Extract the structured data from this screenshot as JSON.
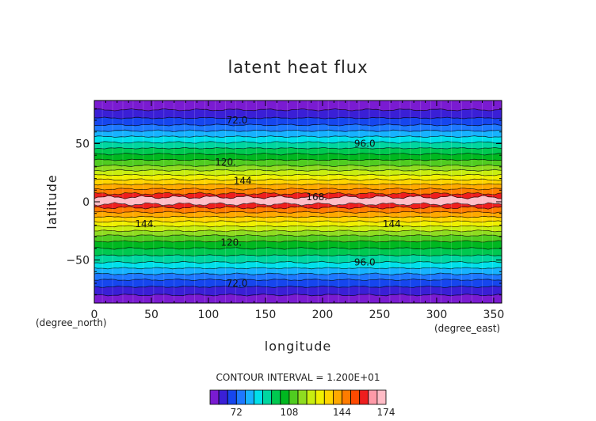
{
  "chart_data": {
    "type": "heatmap",
    "title": "latent heat flux",
    "xlabel": "longitude",
    "ylabel": "latitude",
    "x_unit": "(degree_east)",
    "y_unit": "(degree_north)",
    "xlim": [
      0,
      357
    ],
    "ylim": [
      -87,
      87
    ],
    "x_ticks": [
      "0",
      "50",
      "100",
      "150",
      "200",
      "250",
      "300",
      "350"
    ],
    "y_ticks": [
      "50",
      "0",
      "−50"
    ],
    "contour_interval_text": "CONTOUR INTERVAL = 1.200E+01",
    "contour_labels": [
      {
        "text": "72.0",
        "lon": 125,
        "lat": 70
      },
      {
        "text": "96.0",
        "lon": 237,
        "lat": 50
      },
      {
        "text": "120.",
        "lon": 115,
        "lat": 34
      },
      {
        "text": "144",
        "lon": 130,
        "lat": 18
      },
      {
        "text": "168.",
        "lon": 195,
        "lat": 4
      },
      {
        "text": "144.",
        "lon": 45,
        "lat": -19
      },
      {
        "text": "144.",
        "lon": 262,
        "lat": -19
      },
      {
        "text": "120.",
        "lon": 120,
        "lat": -35
      },
      {
        "text": "96.0",
        "lon": 237,
        "lat": -52
      },
      {
        "text": "72.0",
        "lon": 125,
        "lat": -70
      }
    ],
    "levels": [
      54,
      60,
      66,
      72,
      78,
      84,
      90,
      96,
      102,
      108,
      114,
      120,
      126,
      132,
      138,
      144,
      150,
      156,
      162,
      168,
      174
    ],
    "colorbar_ticks": [
      "72",
      "108",
      "144",
      "174"
    ],
    "colors": [
      "#7a1bd1",
      "#3a1fd6",
      "#1646ee",
      "#1e78ff",
      "#17b2ff",
      "#00e0ea",
      "#00d6a0",
      "#00c850",
      "#00b820",
      "#50cc20",
      "#8fdc20",
      "#c8ee10",
      "#f0f000",
      "#ffd400",
      "#ffa800",
      "#ff7c00",
      "#ff4a00",
      "#ee1e1e",
      "#ff9aa8",
      "#ffbcc6"
    ],
    "bands": [
      {
        "lat_min": -87,
        "lat_max": -80,
        "value": 57
      },
      {
        "lat_min": -80,
        "lat_max": -73,
        "value": 63
      },
      {
        "lat_min": -73,
        "lat_max": -67,
        "value": 69
      },
      {
        "lat_min": -67,
        "lat_max": -62,
        "value": 75
      },
      {
        "lat_min": -62,
        "lat_max": -57,
        "value": 81
      },
      {
        "lat_min": -57,
        "lat_max": -52,
        "value": 87
      },
      {
        "lat_min": -52,
        "lat_max": -46,
        "value": 93
      },
      {
        "lat_min": -46,
        "lat_max": -40,
        "value": 99
      },
      {
        "lat_min": -40,
        "lat_max": -34,
        "value": 105
      },
      {
        "lat_min": -34,
        "lat_max": -29,
        "value": 111
      },
      {
        "lat_min": -29,
        "lat_max": -25,
        "value": 117
      },
      {
        "lat_min": -25,
        "lat_max": -21,
        "value": 123
      },
      {
        "lat_min": -21,
        "lat_max": -17,
        "value": 129
      },
      {
        "lat_min": -17,
        "lat_max": -13,
        "value": 135
      },
      {
        "lat_min": -13,
        "lat_max": -9,
        "value": 141
      },
      {
        "lat_min": -9,
        "lat_max": -5,
        "value": 147
      },
      {
        "lat_min": -5,
        "lat_max": -2,
        "value": 159
      },
      {
        "lat_min": -2,
        "lat_max": 4,
        "value": 171
      },
      {
        "lat_min": 4,
        "lat_max": 7,
        "value": 159
      },
      {
        "lat_min": 7,
        "lat_max": 11,
        "value": 147
      },
      {
        "lat_min": 11,
        "lat_max": 15,
        "value": 141
      },
      {
        "lat_min": 15,
        "lat_max": 19,
        "value": 135
      },
      {
        "lat_min": 19,
        "lat_max": 23,
        "value": 129
      },
      {
        "lat_min": 23,
        "lat_max": 27,
        "value": 123
      },
      {
        "lat_min": 27,
        "lat_max": 31,
        "value": 117
      },
      {
        "lat_min": 31,
        "lat_max": 36,
        "value": 111
      },
      {
        "lat_min": 36,
        "lat_max": 41,
        "value": 105
      },
      {
        "lat_min": 41,
        "lat_max": 46,
        "value": 99
      },
      {
        "lat_min": 46,
        "lat_max": 51,
        "value": 93
      },
      {
        "lat_min": 51,
        "lat_max": 56,
        "value": 87
      },
      {
        "lat_min": 56,
        "lat_max": 61,
        "value": 81
      },
      {
        "lat_min": 61,
        "lat_max": 66,
        "value": 75
      },
      {
        "lat_min": 66,
        "lat_max": 72,
        "value": 69
      },
      {
        "lat_min": 72,
        "lat_max": 79,
        "value": 63
      },
      {
        "lat_min": 79,
        "lat_max": 87,
        "value": 57
      }
    ]
  }
}
